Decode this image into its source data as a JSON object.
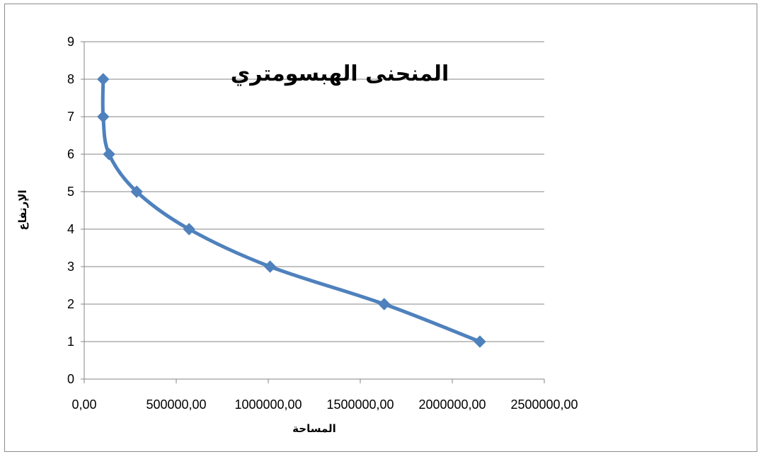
{
  "chart_data": {
    "type": "line",
    "title": "المنحنى الهبسومتري",
    "xlabel": "المساحة",
    "ylabel": "الإرتفاع",
    "xlim": [
      0,
      2500000
    ],
    "ylim": [
      0,
      9
    ],
    "x_ticks": [
      "0,00",
      "500000,00",
      "1000000,00",
      "1500000,00",
      "2000000,00",
      "2500000,00"
    ],
    "y_ticks": [
      "0",
      "1",
      "2",
      "3",
      "4",
      "5",
      "6",
      "7",
      "8",
      "9"
    ],
    "grid": "horizontal",
    "legend": "none",
    "smooth": true,
    "series": [
      {
        "color": "#4f81bd",
        "marker": "diamond",
        "points": [
          {
            "x": 2150000,
            "y": 1
          },
          {
            "x": 1630000,
            "y": 2
          },
          {
            "x": 1010000,
            "y": 3
          },
          {
            "x": 570000,
            "y": 4
          },
          {
            "x": 285000,
            "y": 5
          },
          {
            "x": 135000,
            "y": 6
          },
          {
            "x": 103000,
            "y": 7
          },
          {
            "x": 103000,
            "y": 8
          }
        ]
      }
    ]
  }
}
